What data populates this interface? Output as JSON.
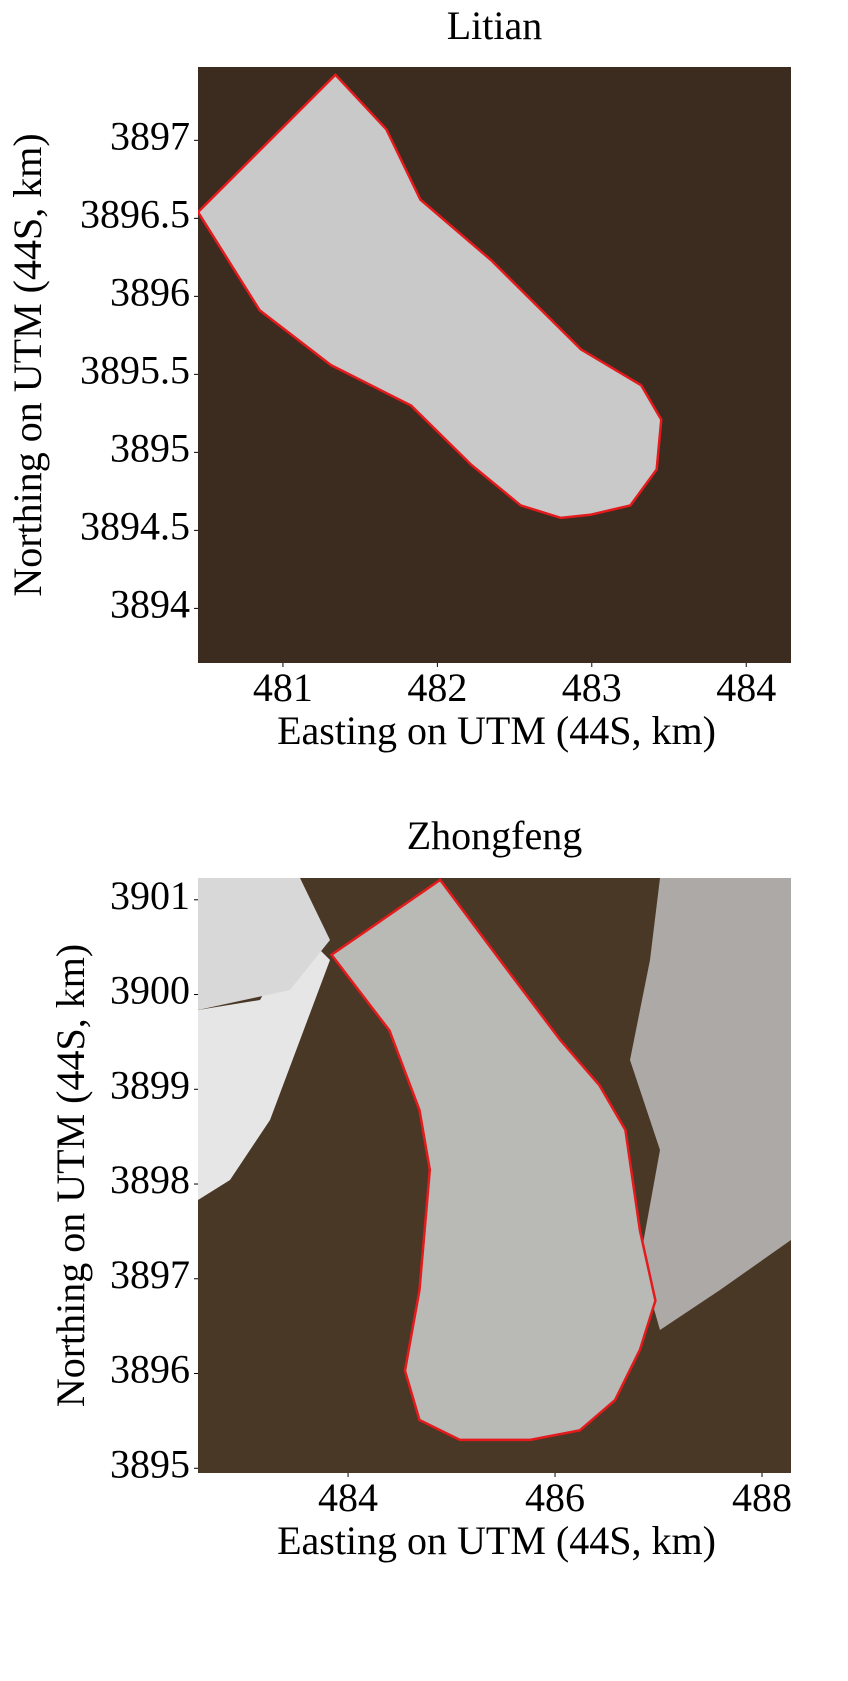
{
  "chart_data": [
    {
      "type": "outline",
      "title": "Litian",
      "xlabel": "Easting on UTM (44S, km)",
      "ylabel": "Northing on UTM (44S, km)",
      "xlim": [
        480.45,
        484.29
      ],
      "ylim": [
        3893.65,
        3897.47
      ],
      "xticks": [
        481,
        482,
        483,
        484
      ],
      "yticks": [
        3894,
        3894.5,
        3895,
        3895.5,
        3896,
        3896.5,
        3897
      ],
      "background": "#3b2c1f",
      "fill": "#c9c9c9",
      "series": [
        {
          "color": "#e41a1c",
          "x": [
            481.34,
            481.67,
            481.89,
            482.35,
            482.93,
            483.32,
            483.45,
            483.42,
            483.25,
            482.99,
            482.8,
            482.54,
            482.22,
            481.83,
            481.31,
            480.85,
            480.45
          ],
          "y": [
            3897.42,
            3897.07,
            3896.62,
            3896.23,
            3895.66,
            3895.43,
            3895.21,
            3894.89,
            3894.66,
            3894.6,
            3894.58,
            3894.66,
            3894.92,
            3895.3,
            3895.56,
            3895.91,
            3896.54
          ]
        }
      ]
    },
    {
      "type": "outline",
      "title": "Zhongfeng",
      "xlabel": "Easting on UTM (44S, km)",
      "ylabel": "Northing on UTM (44S, km)",
      "xlim": [
        482.55,
        488.28
      ],
      "ylim": [
        3894.95,
        3901.23
      ],
      "xticks": [
        484,
        486,
        488
      ],
      "yticks": [
        3895,
        3896,
        3897,
        3898,
        3899,
        3900,
        3901
      ],
      "background": "#4a3826",
      "fill": "#b9b9b6",
      "series": [
        {
          "color": "#e41a1c",
          "x": [
            484.89,
            485.47,
            486.05,
            486.43,
            486.68,
            486.82,
            486.97,
            486.82,
            486.58,
            486.24,
            485.76,
            485.08,
            484.69,
            484.55,
            484.69,
            484.79,
            484.69,
            484.4,
            483.84
          ],
          "y": [
            3901.21,
            3900.36,
            3899.52,
            3899.04,
            3898.57,
            3897.51,
            3896.77,
            3896.25,
            3895.72,
            3895.4,
            3895.3,
            3895.3,
            3895.51,
            3896.03,
            3896.88,
            3898.15,
            3898.78,
            3899.62,
            3900.42
          ]
        }
      ]
    }
  ]
}
